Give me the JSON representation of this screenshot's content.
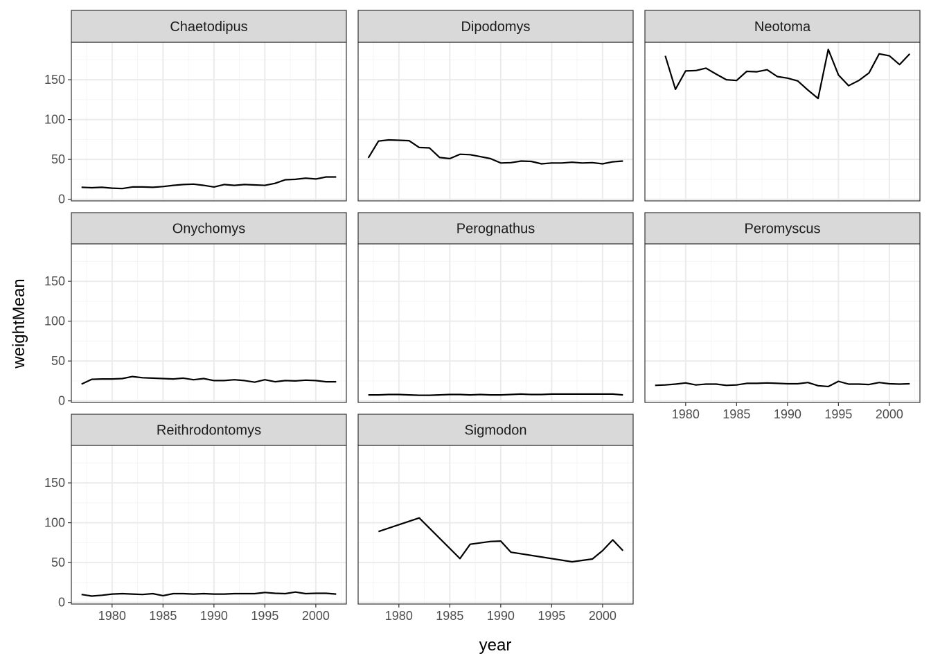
{
  "chart_data": {
    "type": "line",
    "xlabel": "year",
    "ylabel": "weightMean",
    "xlim": [
      1976,
      2003
    ],
    "ylim": [
      -2,
      197
    ],
    "x_ticks": [
      1980,
      1985,
      1990,
      1995,
      2000
    ],
    "y_ticks": [
      0,
      50,
      100,
      150
    ],
    "grid": true,
    "facet_layout": {
      "columns": 3,
      "rows": 3
    },
    "colors": {
      "line": "#000000",
      "strip_fill": "#d9d9d9",
      "panel_border": "#333333",
      "grid_major": "#ebebeb",
      "grid_minor": "#f5f5f5"
    },
    "panels": [
      {
        "name": "Chaetodipus",
        "x": [
          1977,
          1978,
          1979,
          1980,
          1981,
          1982,
          1983,
          1984,
          1985,
          1986,
          1987,
          1988,
          1989,
          1990,
          1991,
          1992,
          1993,
          1994,
          1995,
          1996,
          1997,
          1998,
          1999,
          2000,
          2001,
          2002
        ],
        "y": [
          15,
          14.5,
          15,
          14,
          13.5,
          15.5,
          15.5,
          15,
          16,
          17.5,
          18.5,
          19,
          17.5,
          15.5,
          18.5,
          17.5,
          18.5,
          18,
          17.5,
          20,
          24.5,
          25,
          26.5,
          25.5,
          28,
          28
        ]
      },
      {
        "name": "Dipodomys",
        "x": [
          1977,
          1978,
          1979,
          1980,
          1981,
          1982,
          1983,
          1984,
          1985,
          1986,
          1987,
          1988,
          1989,
          1990,
          1991,
          1992,
          1993,
          1994,
          1995,
          1996,
          1997,
          1998,
          1999,
          2000,
          2001,
          2002
        ],
        "y": [
          52,
          73,
          74.5,
          74,
          73.5,
          65,
          64.5,
          52.5,
          51,
          56.5,
          56,
          53.5,
          51,
          45.5,
          46,
          48,
          47.5,
          44.5,
          45.5,
          45.5,
          46.5,
          45.5,
          46,
          44.5,
          47,
          48
        ]
      },
      {
        "name": "Neotoma",
        "x": [
          1978,
          1979,
          1980,
          1981,
          1982,
          1983,
          1984,
          1985,
          1986,
          1987,
          1988,
          1989,
          1990,
          1991,
          1992,
          1993,
          1994,
          1995,
          1996,
          1997,
          1998,
          1999,
          2000,
          2001,
          2002
        ],
        "y": [
          180,
          138,
          161,
          161.5,
          164.5,
          157,
          150,
          149,
          160.5,
          160,
          162.5,
          154,
          152,
          148.5,
          137,
          126.5,
          188,
          156,
          142.5,
          149,
          158.5,
          182.5,
          180,
          169,
          182.5
        ]
      },
      {
        "name": "Onychomys",
        "x": [
          1977,
          1978,
          1979,
          1980,
          1981,
          1982,
          1983,
          1984,
          1985,
          1986,
          1987,
          1988,
          1989,
          1990,
          1991,
          1992,
          1993,
          1994,
          1995,
          1996,
          1997,
          1998,
          1999,
          2000,
          2001,
          2002
        ],
        "y": [
          21,
          27,
          27.5,
          27.5,
          28,
          30.5,
          29,
          28.5,
          28,
          27.5,
          28.5,
          26.5,
          28,
          25.5,
          25.5,
          26.5,
          25.5,
          23.5,
          26.5,
          24,
          25.5,
          25,
          26,
          25.5,
          24,
          24
        ]
      },
      {
        "name": "Perognathus",
        "x": [
          1977,
          1978,
          1979,
          1980,
          1981,
          1982,
          1983,
          1984,
          1985,
          1986,
          1987,
          1988,
          1989,
          1990,
          1991,
          1992,
          1993,
          1994,
          1995,
          1996,
          1997,
          1998,
          1999,
          2000,
          2001,
          2002
        ],
        "y": [
          7.5,
          7.5,
          8,
          8,
          7.5,
          7,
          7,
          7.5,
          8,
          8,
          7.5,
          8,
          7.5,
          7.5,
          8,
          8.5,
          8,
          8,
          8.5,
          8.5,
          8.5,
          8.5,
          8.5,
          8.5,
          8.5,
          7.5
        ]
      },
      {
        "name": "Peromyscus",
        "x": [
          1977,
          1978,
          1979,
          1980,
          1981,
          1982,
          1983,
          1984,
          1985,
          1986,
          1987,
          1988,
          1989,
          1990,
          1991,
          1992,
          1993,
          1994,
          1995,
          1996,
          1997,
          1998,
          1999,
          2000,
          2001,
          2002
        ],
        "y": [
          19.5,
          20,
          21,
          22.5,
          20,
          21,
          21,
          19.5,
          20,
          22,
          22,
          22.5,
          22,
          21.5,
          21.5,
          23,
          19,
          18,
          24.5,
          21,
          21,
          20.5,
          23,
          21.5,
          21,
          21.5
        ]
      },
      {
        "name": "Reithrodontomys",
        "x": [
          1977,
          1978,
          1979,
          1980,
          1981,
          1982,
          1983,
          1984,
          1985,
          1986,
          1987,
          1988,
          1989,
          1990,
          1991,
          1992,
          1993,
          1994,
          1995,
          1996,
          1997,
          1998,
          1999,
          2000,
          2001,
          2002
        ],
        "y": [
          10,
          8,
          9,
          10.5,
          11,
          10.5,
          10,
          11,
          8.5,
          11,
          11,
          10.5,
          11,
          10.5,
          10.5,
          11,
          11,
          11,
          12.5,
          11.5,
          11,
          13,
          11,
          11.5,
          11.5,
          10.5
        ]
      },
      {
        "name": "Sigmodon",
        "x": [
          1978,
          1982,
          1986,
          1987,
          1989,
          1990,
          1991,
          1997,
          1999,
          2000,
          2001,
          2002
        ],
        "y": [
          89,
          106,
          55,
          73,
          76.5,
          77,
          63,
          51,
          54.5,
          65,
          78.5,
          65
        ]
      }
    ]
  }
}
